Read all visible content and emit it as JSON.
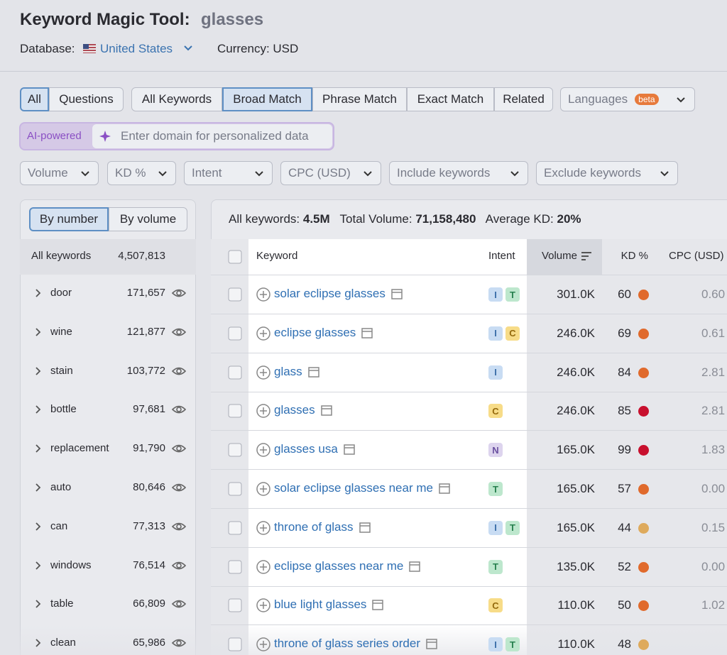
{
  "header": {
    "title": "Keyword Magic Tool:",
    "query": "glasses",
    "database_label": "Database:",
    "database": "United States",
    "currency": "Currency: USD"
  },
  "question_tabs": [
    "All",
    "Questions"
  ],
  "match_tabs": [
    "All Keywords",
    "Broad Match",
    "Phrase Match",
    "Exact Match",
    "Related"
  ],
  "languages": {
    "label": "Languages",
    "badge": "beta"
  },
  "ai": {
    "badge": "AI-powered",
    "placeholder": "Enter domain for personalized data"
  },
  "filters": [
    "Volume",
    "KD %",
    "Intent",
    "CPC (USD)",
    "Include keywords",
    "Exclude keywords"
  ],
  "sidebar": {
    "toggle": [
      "By number",
      "By volume"
    ],
    "all_label": "All keywords",
    "all_count": "4,507,813",
    "groups": [
      {
        "name": "door",
        "count": "171,657"
      },
      {
        "name": "wine",
        "count": "121,877"
      },
      {
        "name": "stain",
        "count": "103,772"
      },
      {
        "name": "bottle",
        "count": "97,681"
      },
      {
        "name": "replacement",
        "count": "91,790"
      },
      {
        "name": "auto",
        "count": "80,646"
      },
      {
        "name": "can",
        "count": "77,313"
      },
      {
        "name": "windows",
        "count": "76,514"
      },
      {
        "name": "table",
        "count": "66,809"
      },
      {
        "name": "clean",
        "count": "65,986"
      }
    ]
  },
  "summary": {
    "all_label": "All keywords:",
    "all_value": "4.5M",
    "volume_label": "Total Volume:",
    "volume_value": "71,158,480",
    "kd_label": "Average KD:",
    "kd_value": "20%"
  },
  "table": {
    "columns": [
      "Keyword",
      "Intent",
      "Volume",
      "KD %",
      "CPC (USD)"
    ],
    "rows": [
      {
        "keyword": "solar eclipse glasses",
        "intent": [
          "I",
          "T"
        ],
        "volume": "301.0K",
        "kd": 60,
        "cpc": "0.60"
      },
      {
        "keyword": "eclipse glasses",
        "intent": [
          "I",
          "C"
        ],
        "volume": "246.0K",
        "kd": 69,
        "cpc": "0.61"
      },
      {
        "keyword": "glass",
        "intent": [
          "I"
        ],
        "volume": "246.0K",
        "kd": 84,
        "cpc": "2.81"
      },
      {
        "keyword": "glasses",
        "intent": [
          "C"
        ],
        "volume": "246.0K",
        "kd": 85,
        "cpc": "2.81"
      },
      {
        "keyword": "glasses usa",
        "intent": [
          "N"
        ],
        "volume": "165.0K",
        "kd": 99,
        "cpc": "1.83"
      },
      {
        "keyword": "solar eclipse glasses near me",
        "intent": [
          "T"
        ],
        "volume": "165.0K",
        "kd": 57,
        "cpc": "0.00"
      },
      {
        "keyword": "throne of glass",
        "intent": [
          "I",
          "T"
        ],
        "volume": "165.0K",
        "kd": 44,
        "cpc": "0.15"
      },
      {
        "keyword": "eclipse glasses near me",
        "intent": [
          "T"
        ],
        "volume": "135.0K",
        "kd": 52,
        "cpc": "0.00"
      },
      {
        "keyword": "blue light glasses",
        "intent": [
          "C"
        ],
        "volume": "110.0K",
        "kd": 50,
        "cpc": "1.02"
      },
      {
        "keyword": "throne of glass series order",
        "intent": [
          "I",
          "T"
        ],
        "volume": "110.0K",
        "kd": 48
      }
    ]
  }
}
